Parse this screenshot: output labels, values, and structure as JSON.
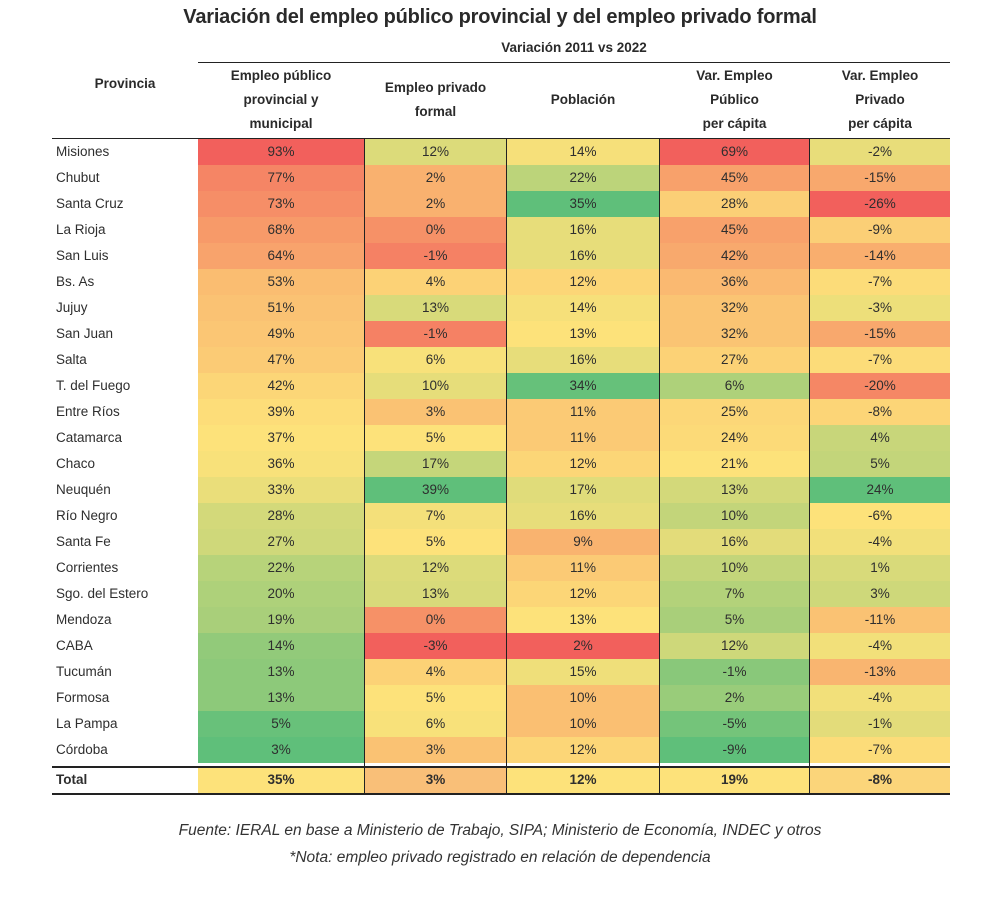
{
  "chart_data": {
    "type": "table",
    "title": "Variación del empleo público provincial y del empleo privado formal",
    "subtitle": "Variación 2011 vs 2022",
    "columns": [
      {
        "key": "provincia",
        "label": [
          "Provincia"
        ]
      },
      {
        "key": "publico",
        "label": [
          "Empleo público",
          "provincial y",
          "municipal"
        ]
      },
      {
        "key": "privado",
        "label": [
          "Empleo privado",
          "formal"
        ]
      },
      {
        "key": "poblacion",
        "label": [
          "Población"
        ]
      },
      {
        "key": "pub_pc",
        "label": [
          "Var. Empleo",
          "Público",
          "per cápita"
        ]
      },
      {
        "key": "priv_pc",
        "label": [
          "Var. Empleo",
          "Privado",
          "per cápita"
        ]
      }
    ],
    "rows": [
      {
        "provincia": "Misiones",
        "values": [
          93,
          12,
          14,
          69,
          -2
        ]
      },
      {
        "provincia": "Chubut",
        "values": [
          77,
          2,
          22,
          45,
          -15
        ]
      },
      {
        "provincia": "Santa Cruz",
        "values": [
          73,
          2,
          35,
          28,
          -26
        ]
      },
      {
        "provincia": "La Rioja",
        "values": [
          68,
          0,
          16,
          45,
          -9
        ]
      },
      {
        "provincia": "San Luis",
        "values": [
          64,
          -1,
          16,
          42,
          -14
        ]
      },
      {
        "provincia": "Bs. As",
        "values": [
          53,
          4,
          12,
          36,
          -7
        ]
      },
      {
        "provincia": "Jujuy",
        "values": [
          51,
          13,
          14,
          32,
          -3
        ]
      },
      {
        "provincia": "San Juan",
        "values": [
          49,
          -1,
          13,
          32,
          -15
        ]
      },
      {
        "provincia": "Salta",
        "values": [
          47,
          6,
          16,
          27,
          -7
        ]
      },
      {
        "provincia": "T. del Fuego",
        "values": [
          42,
          10,
          34,
          6,
          -20
        ]
      },
      {
        "provincia": "Entre Ríos",
        "values": [
          39,
          3,
          11,
          25,
          -8
        ]
      },
      {
        "provincia": "Catamarca",
        "values": [
          37,
          5,
          11,
          24,
          4
        ]
      },
      {
        "provincia": "Chaco",
        "values": [
          36,
          17,
          12,
          21,
          5
        ]
      },
      {
        "provincia": "Neuquén",
        "values": [
          33,
          39,
          17,
          13,
          24
        ]
      },
      {
        "provincia": "Río Negro",
        "values": [
          28,
          7,
          16,
          10,
          -6
        ]
      },
      {
        "provincia": "Santa Fe",
        "values": [
          27,
          5,
          9,
          16,
          -4
        ]
      },
      {
        "provincia": "Corrientes",
        "values": [
          22,
          12,
          11,
          10,
          1
        ]
      },
      {
        "provincia": "Sgo. del Estero",
        "values": [
          20,
          13,
          12,
          7,
          3
        ]
      },
      {
        "provincia": "Mendoza",
        "values": [
          19,
          0,
          13,
          5,
          -11
        ]
      },
      {
        "provincia": "CABA",
        "values": [
          14,
          -3,
          2,
          12,
          -4
        ]
      },
      {
        "provincia": "Tucumán",
        "values": [
          13,
          4,
          15,
          -1,
          -13
        ]
      },
      {
        "provincia": "Formosa",
        "values": [
          13,
          5,
          10,
          2,
          -4
        ]
      },
      {
        "provincia": "La Pampa",
        "values": [
          5,
          6,
          10,
          -5,
          -1
        ]
      },
      {
        "provincia": "Córdoba",
        "values": [
          3,
          3,
          12,
          -9,
          -7
        ]
      }
    ],
    "total": {
      "provincia": "Total",
      "values": [
        35,
        3,
        12,
        19,
        -8
      ]
    },
    "unit": "%",
    "color_scale": {
      "low": "#5fbf7a",
      "mid": "#fde27a",
      "high": "#f2605c",
      "note": "per-column heatmap; public-employment columns: high=red, low=green; private & population columns: high=green, low=red"
    },
    "total_colors": [
      "#fde27a",
      "#f9bf78",
      "#fde27a",
      "#fde27a",
      "#fbd57a"
    ]
  },
  "footer": {
    "source": "Fuente: IERAL en base a Ministerio de Trabajo, SIPA; Ministerio de Economía, INDEC  y otros",
    "note": "*Nota: empleo privado registrado en relación de dependencia"
  }
}
